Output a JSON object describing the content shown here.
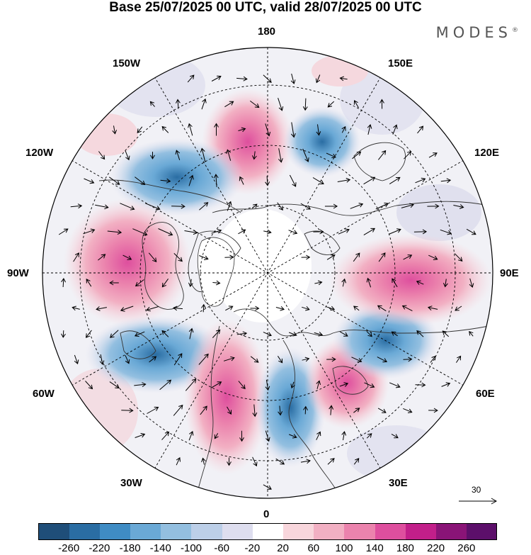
{
  "title": "Base 25/07/2025 00 UTC, valid 28/07/2025 00 UTC",
  "brand": "MODES",
  "brand_mark": "®",
  "longitude_labels": {
    "top": "180",
    "bottom": "0",
    "left": "90W",
    "right": "90E",
    "upper_left": "150W",
    "upper_right": "150E",
    "mid_upper_left": "120W",
    "mid_upper_right": "120E",
    "mid_lower_left": "60W",
    "mid_lower_right": "60E",
    "lower_left": "30W",
    "lower_right": "30E"
  },
  "reference_vector": {
    "label": "30"
  },
  "colorbar": {
    "ticks": [
      "-260",
      "-220",
      "-180",
      "-140",
      "-100",
      "-60",
      "-20",
      "20",
      "60",
      "100",
      "140",
      "180",
      "220",
      "260"
    ],
    "colors": [
      "#1f4e79",
      "#2a6da3",
      "#3f8cc4",
      "#6aa9d6",
      "#93bfe0",
      "#bccfe8",
      "#dedeef",
      "#ffffff",
      "#f8d6dc",
      "#f2b0c3",
      "#eb83ad",
      "#de4f9e",
      "#c21f8a",
      "#8a1477",
      "#5c0f6a"
    ]
  },
  "anomalies": [
    {
      "name": "anom-positive-bering",
      "sign": "positive",
      "strength": 0.55
    },
    {
      "name": "anom-negative-kamchatka",
      "sign": "negative",
      "strength": 0.45
    },
    {
      "name": "anom-negative-alaska",
      "sign": "negative",
      "strength": 0.6
    },
    {
      "name": "anom-positive-canada",
      "sign": "positive",
      "strength": 0.6
    },
    {
      "name": "anom-negative-labrador",
      "sign": "negative",
      "strength": 0.5
    },
    {
      "name": "anom-positive-atlantic",
      "sign": "positive",
      "strength": 0.85
    },
    {
      "name": "anom-negative-scandinavia",
      "sign": "negative",
      "strength": 0.85
    },
    {
      "name": "anom-positive-russia",
      "sign": "positive",
      "strength": 0.55
    },
    {
      "name": "anom-negative-siberia",
      "sign": "negative",
      "strength": 0.55
    },
    {
      "name": "anom-positive-central-asia",
      "sign": "positive",
      "strength": 0.75
    }
  ]
}
